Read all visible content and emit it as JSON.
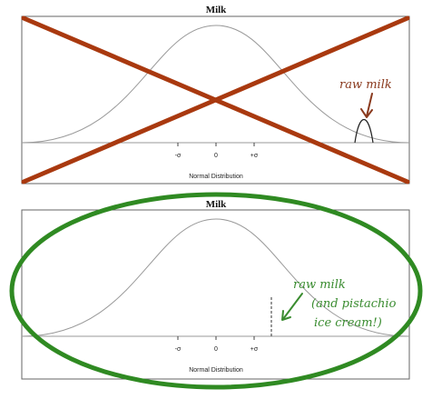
{
  "colors": {
    "cross": "#a9390f",
    "ellipse": "#2f8a22",
    "note_top": "#8a3a1e",
    "note_bottom": "#3a8c30",
    "curve": "#9a9a9a",
    "frame": "#555555"
  },
  "top_panel": {
    "title": "Milk",
    "ticks": [
      "-σ",
      "0",
      "+σ"
    ],
    "xlabel": "Normal Distribution",
    "annotation": "raw milk"
  },
  "bottom_panel": {
    "title": "Milk",
    "ticks": [
      "-σ",
      "0",
      "+σ"
    ],
    "xlabel": "Normal Distribution",
    "annotation_lines": [
      "raw milk",
      "(and pistachio",
      "ice cream!)"
    ]
  }
}
